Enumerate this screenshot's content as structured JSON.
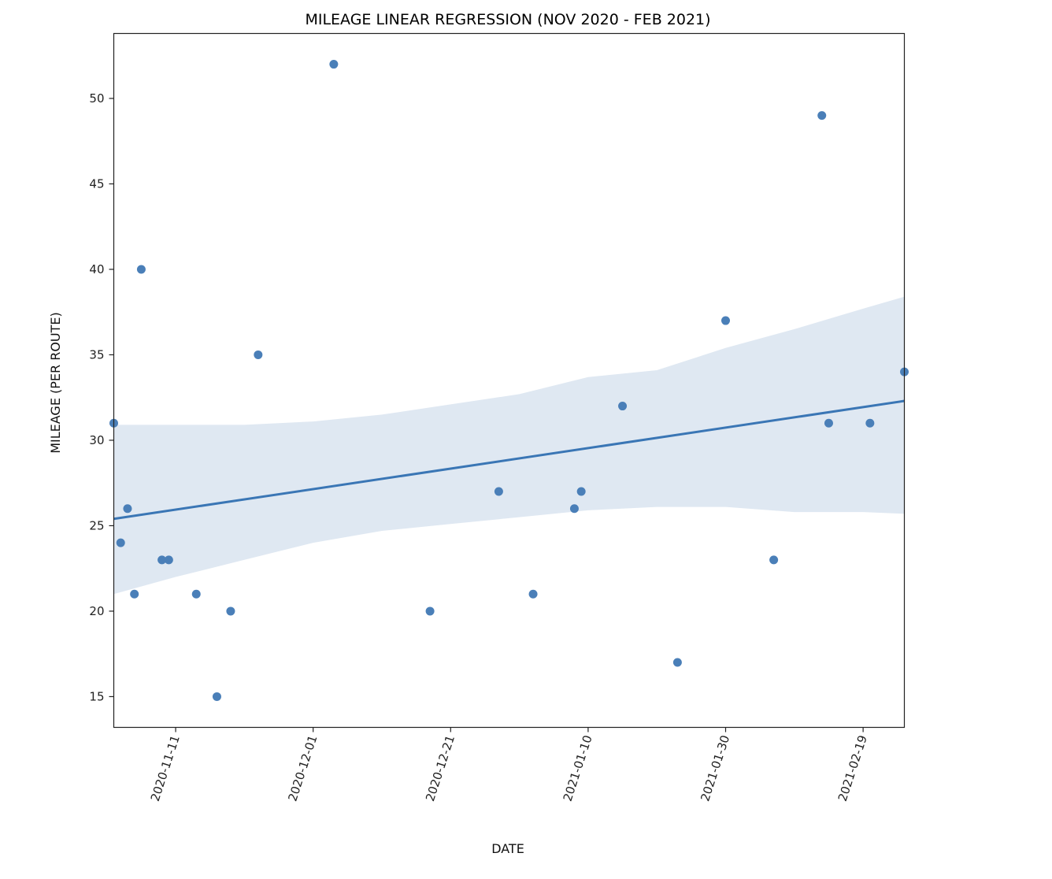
{
  "chart_data": {
    "type": "scatter",
    "title": "MILEAGE LINEAR REGRESSION (NOV 2020 - FEB 2021)",
    "xlabel": "DATE",
    "ylabel": "MILEAGE (PER ROUTE)",
    "x_tick_labels": [
      "2020-11-11",
      "2020-12-01",
      "2020-12-21",
      "2021-01-10",
      "2021-01-30",
      "2021-02-19"
    ],
    "y_tick_labels": [
      "15",
      "20",
      "25",
      "30",
      "35",
      "40",
      "45",
      "50"
    ],
    "xlim": [
      "2020-11-02",
      "2021-02-25"
    ],
    "ylim": [
      13.2,
      53.8
    ],
    "grid": false,
    "legend": "none",
    "point_color": "#4a7fb8",
    "line_color": "#3a76b5",
    "band_color": "#dfe8f2",
    "points": [
      {
        "x": "2020-11-02",
        "y": 31
      },
      {
        "x": "2020-11-03",
        "y": 24
      },
      {
        "x": "2020-11-04",
        "y": 26
      },
      {
        "x": "2020-11-05",
        "y": 21
      },
      {
        "x": "2020-11-06",
        "y": 40
      },
      {
        "x": "2020-11-09",
        "y": 23
      },
      {
        "x": "2020-11-10",
        "y": 23
      },
      {
        "x": "2020-11-14",
        "y": 21
      },
      {
        "x": "2020-11-17",
        "y": 15
      },
      {
        "x": "2020-11-19",
        "y": 20
      },
      {
        "x": "2020-11-23",
        "y": 35
      },
      {
        "x": "2020-12-04",
        "y": 52
      },
      {
        "x": "2020-12-18",
        "y": 20
      },
      {
        "x": "2020-12-28",
        "y": 27
      },
      {
        "x": "2021-01-02",
        "y": 21
      },
      {
        "x": "2021-01-08",
        "y": 26
      },
      {
        "x": "2021-01-09",
        "y": 27
      },
      {
        "x": "2021-01-15",
        "y": 32
      },
      {
        "x": "2021-01-23",
        "y": 17
      },
      {
        "x": "2021-01-30",
        "y": 37
      },
      {
        "x": "2021-02-06",
        "y": 23
      },
      {
        "x": "2021-02-13",
        "y": 49
      },
      {
        "x": "2021-02-14",
        "y": 31
      },
      {
        "x": "2021-02-20",
        "y": 31
      },
      {
        "x": "2021-02-25",
        "y": 34
      }
    ],
    "regression_line": [
      {
        "x": "2020-11-02",
        "y": 25.4
      },
      {
        "x": "2021-02-25",
        "y": 32.3
      }
    ],
    "confidence_band": [
      {
        "x": "2020-11-02",
        "lower": 21.0,
        "upper": 30.9
      },
      {
        "x": "2020-11-11",
        "lower": 22.0,
        "upper": 30.9
      },
      {
        "x": "2020-11-21",
        "lower": 23.0,
        "upper": 30.9
      },
      {
        "x": "2020-12-01",
        "lower": 24.0,
        "upper": 31.1
      },
      {
        "x": "2020-12-11",
        "lower": 24.7,
        "upper": 31.5
      },
      {
        "x": "2020-12-21",
        "lower": 25.1,
        "upper": 32.1
      },
      {
        "x": "2020-12-31",
        "lower": 25.5,
        "upper": 32.7
      },
      {
        "x": "2021-01-10",
        "lower": 25.9,
        "upper": 33.7
      },
      {
        "x": "2021-01-20",
        "lower": 26.1,
        "upper": 34.1
      },
      {
        "x": "2021-01-30",
        "lower": 26.1,
        "upper": 35.4
      },
      {
        "x": "2021-02-09",
        "lower": 25.8,
        "upper": 36.5
      },
      {
        "x": "2021-02-19",
        "lower": 25.8,
        "upper": 37.7
      },
      {
        "x": "2021-02-25",
        "lower": 25.7,
        "upper": 38.4
      }
    ]
  }
}
